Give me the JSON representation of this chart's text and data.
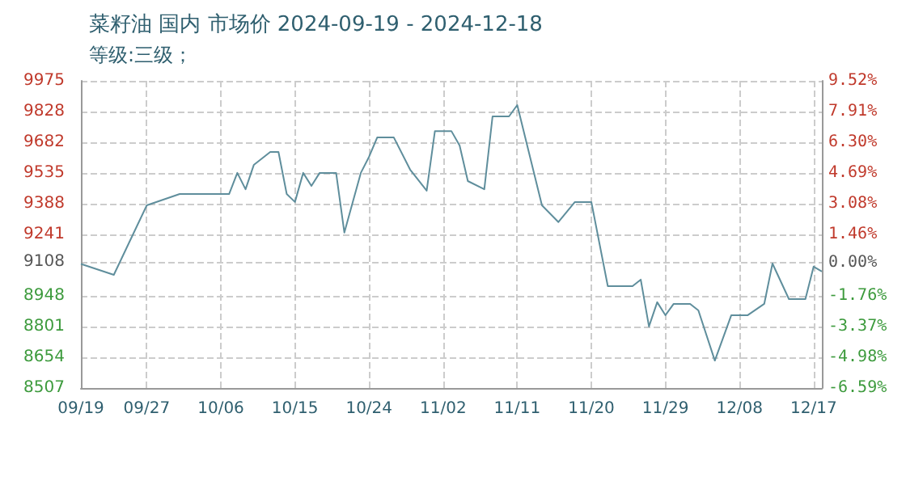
{
  "chart_data": {
    "type": "line",
    "title": "菜籽油 国内 市场价 2024-09-19 - 2024-12-18",
    "subtitle": "等级:三级；",
    "x": [
      "2024-09-19",
      "2024-09-23",
      "2024-09-27",
      "2024-10-01",
      "2024-10-07",
      "2024-10-08",
      "2024-10-09",
      "2024-10-10",
      "2024-10-12",
      "2024-10-13",
      "2024-10-14",
      "2024-10-15",
      "2024-10-16",
      "2024-10-17",
      "2024-10-18",
      "2024-10-20",
      "2024-10-21",
      "2024-10-23",
      "2024-10-24",
      "2024-10-25",
      "2024-10-27",
      "2024-10-29",
      "2024-10-31",
      "2024-11-01",
      "2024-11-03",
      "2024-11-04",
      "2024-11-05",
      "2024-11-07",
      "2024-11-08",
      "2024-11-10",
      "2024-11-11",
      "2024-11-14",
      "2024-11-16",
      "2024-11-18",
      "2024-11-20",
      "2024-11-22",
      "2024-11-25",
      "2024-11-26",
      "2024-11-27",
      "2024-11-28",
      "2024-11-29",
      "2024-11-30",
      "2024-12-02",
      "2024-12-03",
      "2024-12-05",
      "2024-12-07",
      "2024-12-09",
      "2024-12-11",
      "2024-12-12",
      "2024-12-14",
      "2024-12-16",
      "2024-12-17",
      "2024-12-18"
    ],
    "series": [
      {
        "color": "#5f8e9c",
        "values": [
          9100,
          9048,
          9380,
          9434,
          9434,
          9535,
          9457,
          9573,
          9635,
          9635,
          9434,
          9396,
          9535,
          9473,
          9535,
          9535,
          9250,
          9535,
          9612,
          9705,
          9705,
          9550,
          9450,
          9735,
          9735,
          9666,
          9496,
          9457,
          9805,
          9805,
          9859,
          9380,
          9300,
          9396,
          9396,
          8994,
          8994,
          9025,
          8801,
          8917,
          8855,
          8909,
          8909,
          8878,
          8638,
          8855,
          8855,
          8909,
          9102,
          8932,
          8932,
          9087,
          9064
        ]
      }
    ],
    "xlim": [
      "2024-09-19",
      "2024-12-18"
    ],
    "xticks": [
      {
        "value": "2024-09-19",
        "label": "09/19"
      },
      {
        "value": "2024-09-27",
        "label": "09/27"
      },
      {
        "value": "2024-10-06",
        "label": "10/06"
      },
      {
        "value": "2024-10-15",
        "label": "10/15"
      },
      {
        "value": "2024-10-24",
        "label": "10/24"
      },
      {
        "value": "2024-11-02",
        "label": "11/02"
      },
      {
        "value": "2024-11-11",
        "label": "11/11"
      },
      {
        "value": "2024-11-20",
        "label": "11/20"
      },
      {
        "value": "2024-11-29",
        "label": "11/29"
      },
      {
        "value": "2024-12-08",
        "label": "12/08"
      },
      {
        "value": "2024-12-17",
        "label": "12/17"
      }
    ],
    "ylim": [
      8507,
      9975
    ],
    "yticks": [
      8507,
      8654,
      8801,
      8948,
      9108,
      9241,
      9388,
      9535,
      9682,
      9828,
      9975
    ],
    "y2lim": [
      -6.59,
      9.52
    ],
    "y2ticks": [
      {
        "value": -6.59,
        "label": "-6.59%"
      },
      {
        "value": -4.98,
        "label": "-4.98%"
      },
      {
        "value": -3.37,
        "label": "-3.37%"
      },
      {
        "value": -1.76,
        "label": "-1.76%"
      },
      {
        "value": 0,
        "label": "0.00%"
      },
      {
        "value": 1.46,
        "label": "1.46%"
      },
      {
        "value": 3.08,
        "label": "3.08%"
      },
      {
        "value": 4.69,
        "label": "4.69%"
      },
      {
        "value": 6.3,
        "label": "6.30%"
      },
      {
        "value": 7.91,
        "label": "7.91%"
      },
      {
        "value": 9.52,
        "label": "9.52%"
      }
    ],
    "grid": true,
    "marker": "none",
    "line_style": "solid"
  }
}
